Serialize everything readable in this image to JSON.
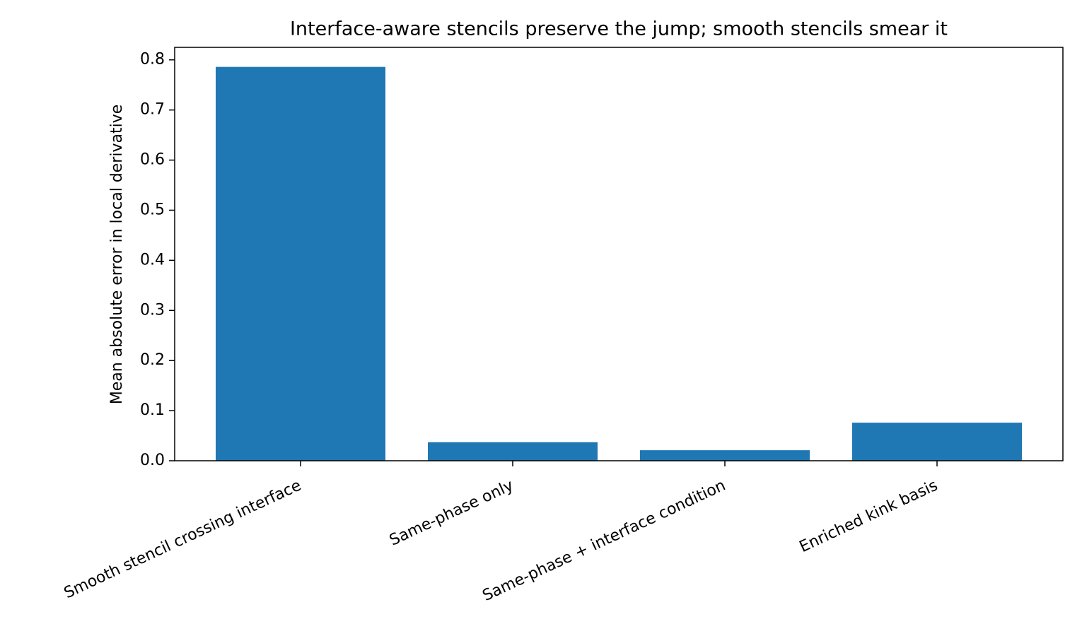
{
  "chart_data": {
    "type": "bar",
    "title": "Interface-aware stencils preserve the jump; smooth stencils smear it",
    "y_label": "Mean absolute error in local derivative",
    "categories": [
      "Smooth stencil crossing interface",
      "Same-phase only",
      "Same-phase + interface condition",
      "Enriched kink basis"
    ],
    "values": [
      0.786,
      0.037,
      0.021,
      0.076
    ],
    "color": "#1f77b4",
    "ylim": [
      0,
      0.825
    ],
    "yticks": [
      {
        "value": 0,
        "label": "0.0"
      },
      0.1,
      0.2,
      0.3,
      0.4,
      0.5,
      0.6,
      0.7,
      0.8
    ]
  }
}
